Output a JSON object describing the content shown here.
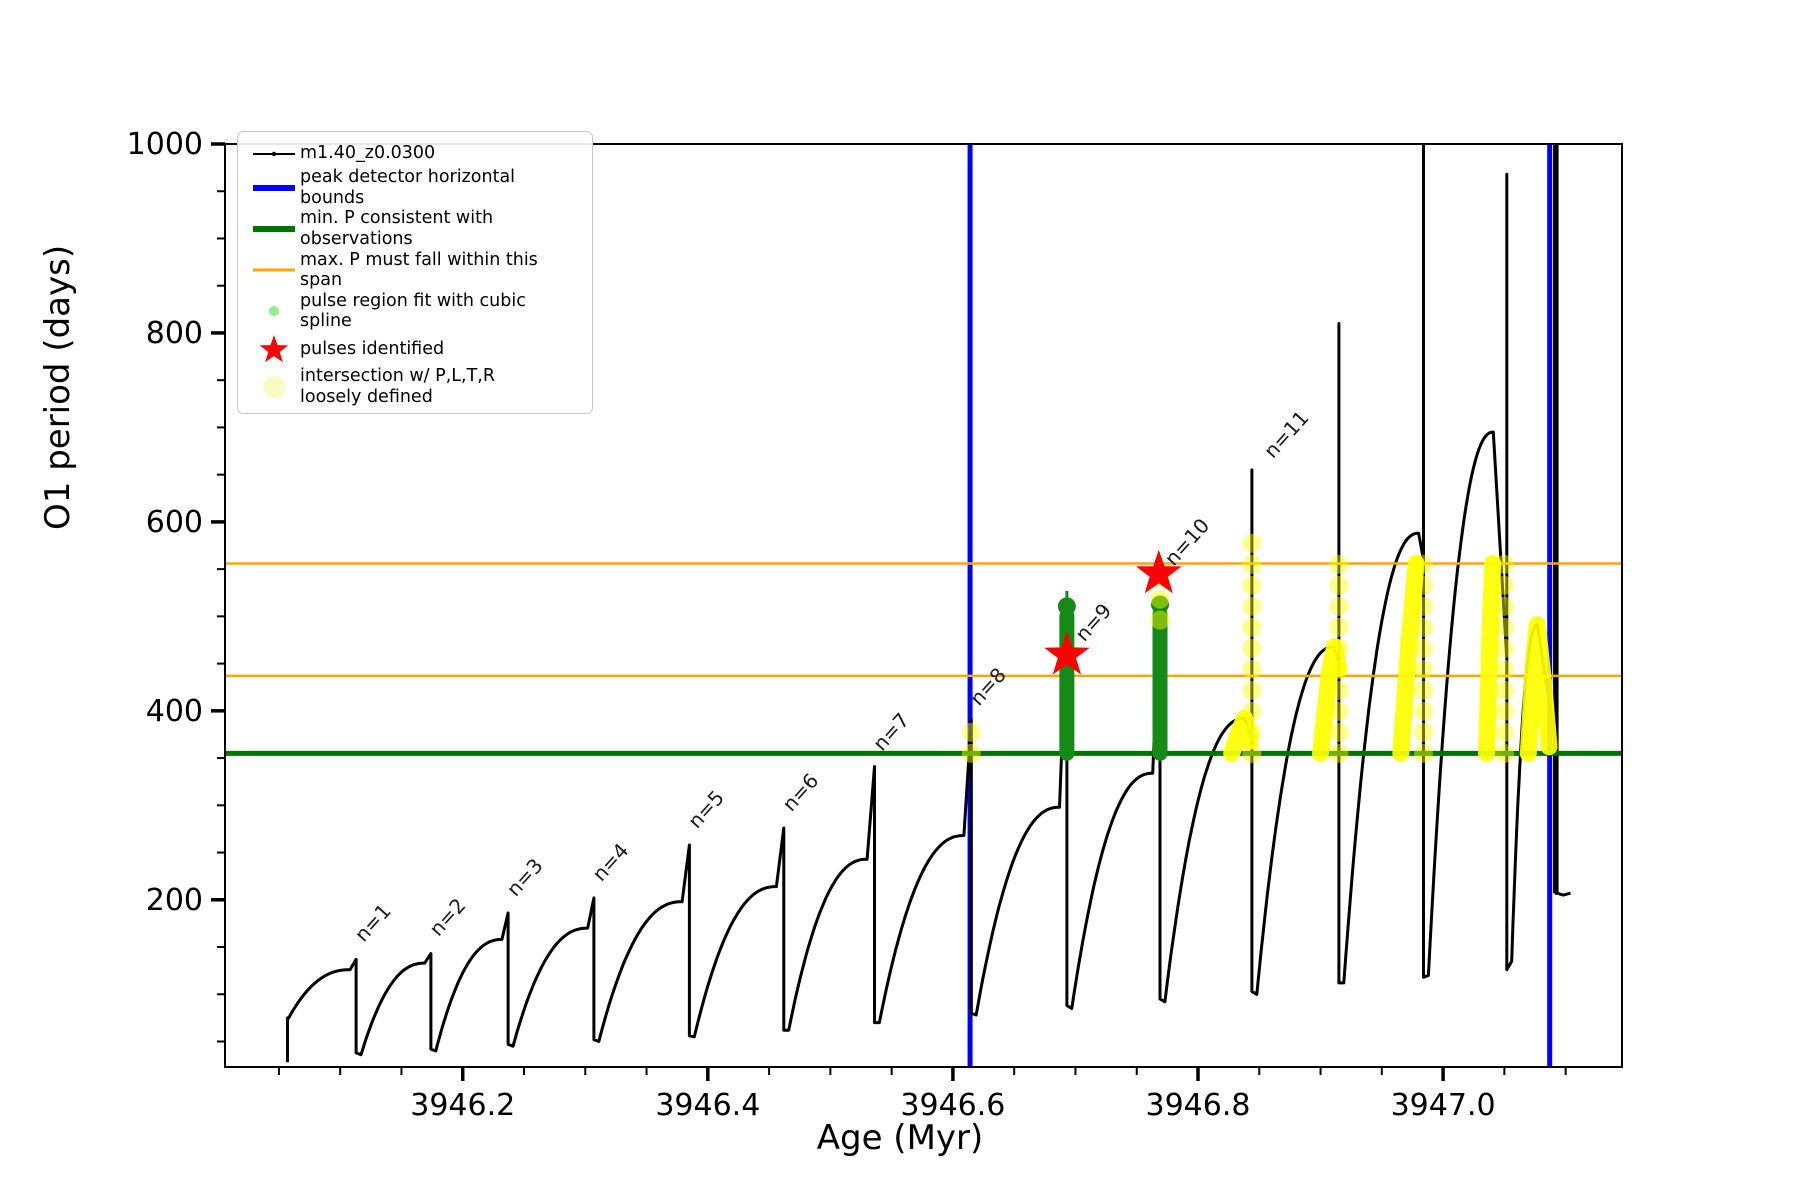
{
  "chart_data": {
    "type": "line",
    "title": "",
    "xlabel": "Age (Myr)",
    "ylabel": "O1 period (days)",
    "x_range": [
      3946.006,
      3947.146
    ],
    "y_range": [
      23,
      1000
    ],
    "x_major_ticks": [
      3946.2,
      3946.4,
      3946.6,
      3946.8,
      3947.0
    ],
    "x_major_tick_labels": [
      "3946.2",
      "3946.4",
      "3946.6",
      "3946.8",
      "3947.0"
    ],
    "x_minor_step": 0.05,
    "y_major_ticks": [
      200,
      400,
      600,
      800,
      1000
    ],
    "y_major_tick_labels": [
      "200",
      "400",
      "600",
      "800",
      "1000"
    ],
    "y_minor_step": 50,
    "grid": "off",
    "legend_position": "upper left",
    "series_name": "m1.40_z0.0300",
    "peak_detector_bounds_x": [
      3946.614,
      3947.087
    ],
    "min_P_line_y": 355,
    "max_P_span_y": [
      437,
      556
    ],
    "initial_segment": [
      [
        3946.057,
        28
      ],
      [
        3946.057,
        75
      ]
    ],
    "pulse_cycles": [
      {
        "dip": [
          3946.058,
          75
        ],
        "arch": [
          3946.108,
          126
        ],
        "spike": [
          3946.113,
          137
        ],
        "drop": 38
      },
      {
        "dip": [
          3946.117,
          36
        ],
        "arch": [
          3946.169,
          133
        ],
        "spike": [
          3946.174,
          143
        ],
        "drop": 42
      },
      {
        "dip": [
          3946.178,
          40
        ],
        "arch": [
          3946.232,
          158
        ],
        "spike": [
          3946.237,
          186
        ],
        "drop": 47
      },
      {
        "dip": [
          3946.241,
          45
        ],
        "arch": [
          3946.302,
          170
        ],
        "spike": [
          3946.307,
          202
        ],
        "drop": 52
      },
      {
        "dip": [
          3946.311,
          50
        ],
        "arch": [
          3946.379,
          198
        ],
        "spike": [
          3946.385,
          258
        ],
        "drop": 56
      },
      {
        "dip": [
          3946.389,
          55
        ],
        "arch": [
          3946.456,
          214
        ],
        "spike": [
          3946.462,
          276
        ],
        "drop": 62
      },
      {
        "dip": [
          3946.466,
          62
        ],
        "arch": [
          3946.53,
          243
        ],
        "spike": [
          3946.536,
          341
        ],
        "drop": 70
      },
      {
        "dip": [
          3946.54,
          70
        ],
        "arch": [
          3946.609,
          268
        ],
        "spike": [
          3946.615,
          391
        ],
        "drop": 80
      },
      {
        "dip": [
          3946.619,
          78
        ],
        "arch": [
          3946.687,
          298
        ],
        "spike": [
          3946.693,
          500
        ],
        "drop": 88
      },
      {
        "dip": [
          3946.697,
          85
        ],
        "arch": [
          3946.763,
          334
        ],
        "spike": [
          3946.769,
          520
        ],
        "drop": 95
      },
      {
        "dip": [
          3946.773,
          92
        ],
        "arch": [
          3946.838,
          392
        ],
        "spike": [
          3946.844,
          655
        ],
        "drop": 103,
        "base": 370
      },
      {
        "dip": [
          3946.848,
          100
        ],
        "arch": [
          3946.911,
          468
        ],
        "spike": [
          3946.915,
          810
        ],
        "drop": 112,
        "base": 450
      },
      {
        "dip": [
          3946.919,
          112
        ],
        "arch": [
          3946.98,
          588
        ],
        "spike": [
          3946.984,
          1005
        ],
        "drop": 118,
        "base": 560
      },
      {
        "dip": [
          3946.988,
          120
        ],
        "arch": [
          3947.041,
          695
        ],
        "spike": [
          3947.052,
          968
        ],
        "drop": 126,
        "base": 455
      },
      {
        "dip": [
          3947.056,
          135
        ],
        "arch": [
          3947.077,
          491
        ],
        "spike": [
          3947.092,
          1005
        ],
        "drop": 207,
        "base": 362
      }
    ],
    "final_tail": [
      [
        3947.093,
        207
      ],
      [
        3947.098,
        205
      ],
      [
        3947.104,
        207
      ]
    ],
    "pulse_labels": [
      {
        "text": "n=1",
        "x": 3946.116,
        "y": 150
      },
      {
        "text": "n=2",
        "x": 3946.177,
        "y": 156
      },
      {
        "text": "n=3",
        "x": 3946.24,
        "y": 198
      },
      {
        "text": "n=4",
        "x": 3946.31,
        "y": 214
      },
      {
        "text": "n=5",
        "x": 3946.388,
        "y": 270
      },
      {
        "text": "n=6",
        "x": 3946.465,
        "y": 288
      },
      {
        "text": "n=7",
        "x": 3946.539,
        "y": 352
      },
      {
        "text": "n=8",
        "x": 3946.618,
        "y": 400
      },
      {
        "text": "n=9",
        "x": 3946.704,
        "y": 468
      },
      {
        "text": "n=10",
        "x": 3946.777,
        "y": 548
      },
      {
        "text": "n=11",
        "x": 3946.858,
        "y": 662
      }
    ],
    "green_spline_columns": [
      {
        "x": 3946.693,
        "y0": 355,
        "y1": 500,
        "tip": 527
      },
      {
        "x": 3946.769,
        "y0": 355,
        "y1": 502,
        "tip": 512
      }
    ],
    "yellow_solid_arcs": [
      [
        [
          3946.8275,
          355
        ],
        [
          3946.834,
          380
        ],
        [
          3946.838,
          392
        ],
        [
          3946.8425,
          368
        ]
      ],
      [
        [
          3946.9,
          355
        ],
        [
          3946.907,
          438
        ],
        [
          3946.9115,
          468
        ],
        [
          3946.9145,
          445
        ]
      ],
      [
        [
          3946.9655,
          355
        ],
        [
          3946.972,
          470
        ],
        [
          3946.978,
          556
        ]
      ],
      [
        [
          3947.0355,
          355
        ],
        [
          3947.038,
          470
        ],
        [
          3947.0405,
          556
        ]
      ],
      [
        [
          3947.0695,
          355
        ],
        [
          3947.074,
          455
        ],
        [
          3947.077,
          491
        ],
        [
          3947.082,
          430
        ],
        [
          3947.0865,
          362
        ]
      ]
    ],
    "yellow_dot_chains": [
      {
        "x": 3946.615,
        "y0": 355,
        "y1": 391
      },
      {
        "x": 3946.769,
        "y0": 496,
        "y1": 552
      },
      {
        "x": 3946.844,
        "y0": 355,
        "y1": 588
      },
      {
        "x": 3946.915,
        "y0": 355,
        "y1": 556
      },
      {
        "x": 3946.984,
        "y0": 355,
        "y1": 556
      },
      {
        "x": 3947.05,
        "y0": 355,
        "y1": 556
      }
    ],
    "stars": [
      {
        "x": 3946.693,
        "y": 459
      },
      {
        "x": 3946.768,
        "y": 545
      }
    ],
    "colors": {
      "series": "#000000",
      "peak_bounds": "#0000ff",
      "min_P": "#007400",
      "max_P": "#ffa500",
      "spline_fit": "#90ee90",
      "spline_column": "#168a16",
      "pulse_star": "#ff0000",
      "intersection": "#ffff00"
    }
  },
  "legend": {
    "entries": [
      {
        "marker": "series-line-icon",
        "label": "m1.40_z0.0300"
      },
      {
        "marker": "blue-line-icon",
        "label": "peak detector horizontal bounds"
      },
      {
        "marker": "green-line-icon",
        "label": "min. P consistent with observations"
      },
      {
        "marker": "orange-line-icon",
        "label": "max. P must fall within this span"
      },
      {
        "marker": "lightgreen-dot-icon",
        "label": "pulse region fit with cubic spline"
      },
      {
        "marker": "red-star-icon",
        "label": "pulses identified"
      },
      {
        "marker": "yellow-dot-icon",
        "label": "intersection w/ P,L,T,R\nloosely defined"
      }
    ]
  }
}
